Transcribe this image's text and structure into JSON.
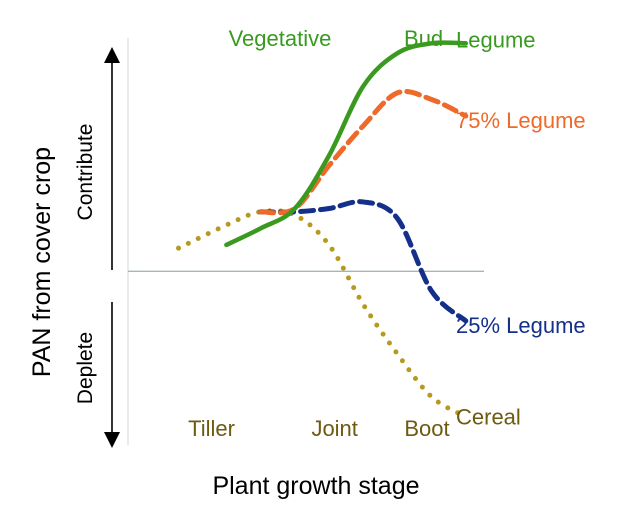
{
  "chart_data": {
    "type": "line",
    "xlabel": "Plant growth stage",
    "ylabel": "PAN from cover crop",
    "y_arrow_up_label": "Contribute",
    "y_arrow_down_label": "Deplete",
    "x_range": [
      0,
      10
    ],
    "y_range": [
      -4.5,
      7
    ],
    "baseline": 0,
    "grid": false,
    "legend": "line-end labels on the right",
    "stages_top": [
      {
        "label": "Vegetative",
        "x": 3.8,
        "color": "#3a9a1f"
      },
      {
        "label": "Bud",
        "x": 8.0,
        "color": "#3a9a1f"
      }
    ],
    "stages_bottom": [
      {
        "label": "Tiller",
        "x": 1.8,
        "color": "#6e5a10"
      },
      {
        "label": "Joint",
        "x": 5.4,
        "color": "#6e5a10"
      },
      {
        "label": "Boot",
        "x": 8.1,
        "color": "#6e5a10"
      }
    ],
    "series": [
      {
        "name": "Legume",
        "color": "#3a9a1f",
        "style": "solid",
        "points": [
          [
            2,
            0.8
          ],
          [
            3,
            1.3
          ],
          [
            4,
            1.9
          ],
          [
            5,
            3.5
          ],
          [
            6,
            5.6
          ],
          [
            7,
            6.6
          ],
          [
            8,
            6.9
          ],
          [
            9,
            6.9
          ]
        ]
      },
      {
        "name": "75% Legume",
        "color": "#ee6a2a",
        "style": "dashed",
        "points": [
          [
            3,
            1.8
          ],
          [
            4,
            1.9
          ],
          [
            5,
            3.2
          ],
          [
            6,
            4.4
          ],
          [
            7,
            5.4
          ],
          [
            8,
            5.2
          ],
          [
            9,
            4.7
          ]
        ]
      },
      {
        "name": "25% Legume",
        "color": "#15308a",
        "style": "dashed",
        "points": [
          [
            3,
            1.8
          ],
          [
            4,
            1.8
          ],
          [
            5,
            1.9
          ],
          [
            6,
            2.1
          ],
          [
            7,
            1.6
          ],
          [
            8,
            -0.6
          ],
          [
            9,
            -1.5
          ]
        ]
      },
      {
        "name": "Cereal",
        "color": "#b59a1f",
        "style": "dotted",
        "points": [
          [
            0.6,
            0.7
          ],
          [
            2,
            1.4
          ],
          [
            3,
            1.8
          ],
          [
            4,
            1.7
          ],
          [
            5,
            0.8
          ],
          [
            6,
            -1.0
          ],
          [
            7,
            -2.5
          ],
          [
            8,
            -3.8
          ],
          [
            9,
            -4.4
          ]
        ]
      }
    ]
  }
}
